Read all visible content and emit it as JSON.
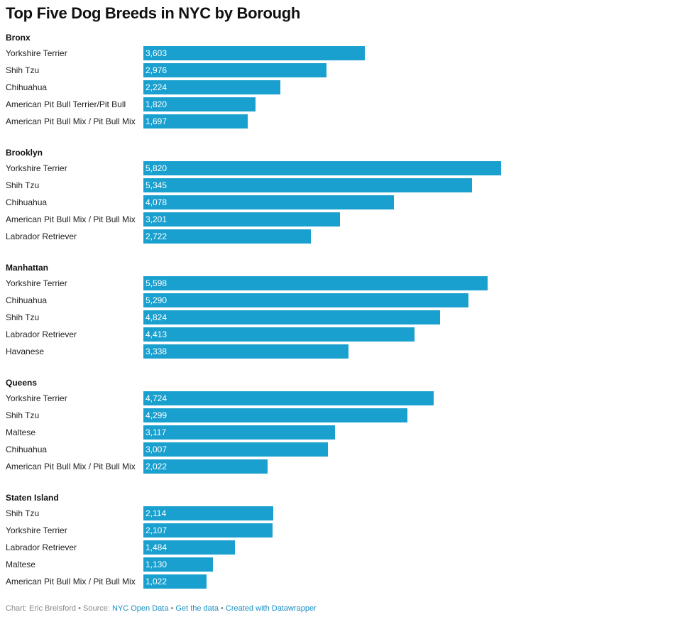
{
  "chart_data": {
    "type": "bar",
    "title": "Top Five Dog Breeds in NYC by Borough",
    "max_value": 5820,
    "groups": [
      {
        "name": "Bronx",
        "bars": [
          {
            "label": "Yorkshire Terrier",
            "value": 3603,
            "display": "3,603"
          },
          {
            "label": "Shih Tzu",
            "value": 2976,
            "display": "2,976"
          },
          {
            "label": "Chihuahua",
            "value": 2224,
            "display": "2,224"
          },
          {
            "label": "American Pit Bull Terrier/Pit Bull",
            "value": 1820,
            "display": "1,820"
          },
          {
            "label": "American Pit Bull Mix / Pit Bull Mix",
            "value": 1697,
            "display": "1,697"
          }
        ]
      },
      {
        "name": "Brooklyn",
        "bars": [
          {
            "label": "Yorkshire Terrier",
            "value": 5820,
            "display": "5,820"
          },
          {
            "label": "Shih Tzu",
            "value": 5345,
            "display": "5,345"
          },
          {
            "label": "Chihuahua",
            "value": 4078,
            "display": "4,078"
          },
          {
            "label": "American Pit Bull Mix / Pit Bull Mix",
            "value": 3201,
            "display": "3,201"
          },
          {
            "label": "Labrador Retriever",
            "value": 2722,
            "display": "2,722"
          }
        ]
      },
      {
        "name": "Manhattan",
        "bars": [
          {
            "label": "Yorkshire Terrier",
            "value": 5598,
            "display": "5,598"
          },
          {
            "label": "Chihuahua",
            "value": 5290,
            "display": "5,290"
          },
          {
            "label": "Shih Tzu",
            "value": 4824,
            "display": "4,824"
          },
          {
            "label": "Labrador Retriever",
            "value": 4413,
            "display": "4,413"
          },
          {
            "label": "Havanese",
            "value": 3338,
            "display": "3,338"
          }
        ]
      },
      {
        "name": "Queens",
        "bars": [
          {
            "label": "Yorkshire Terrier",
            "value": 4724,
            "display": "4,724"
          },
          {
            "label": "Shih Tzu",
            "value": 4299,
            "display": "4,299"
          },
          {
            "label": "Maltese",
            "value": 3117,
            "display": "3,117"
          },
          {
            "label": "Chihuahua",
            "value": 3007,
            "display": "3,007"
          },
          {
            "label": "American Pit Bull Mix / Pit Bull Mix",
            "value": 2022,
            "display": "2,022"
          }
        ]
      },
      {
        "name": "Staten Island",
        "bars": [
          {
            "label": "Shih Tzu",
            "value": 2114,
            "display": "2,114"
          },
          {
            "label": "Yorkshire Terrier",
            "value": 2107,
            "display": "2,107"
          },
          {
            "label": "Labrador Retriever",
            "value": 1484,
            "display": "1,484"
          },
          {
            "label": "Maltese",
            "value": 1130,
            "display": "1,130"
          },
          {
            "label": "American Pit Bull Mix / Pit Bull Mix",
            "value": 1022,
            "display": "1,022"
          }
        ]
      }
    ]
  },
  "colors": {
    "bar": "#1aa0cf",
    "link": "#1a8fc4",
    "footer_text": "#888888"
  },
  "footer": {
    "prefix": "Chart: Eric Brelsford • Source: ",
    "source_link": "NYC Open Data",
    "sep1": " • ",
    "data_link": "Get the data",
    "sep2": " • ",
    "created_link": "Created with Datawrapper"
  }
}
